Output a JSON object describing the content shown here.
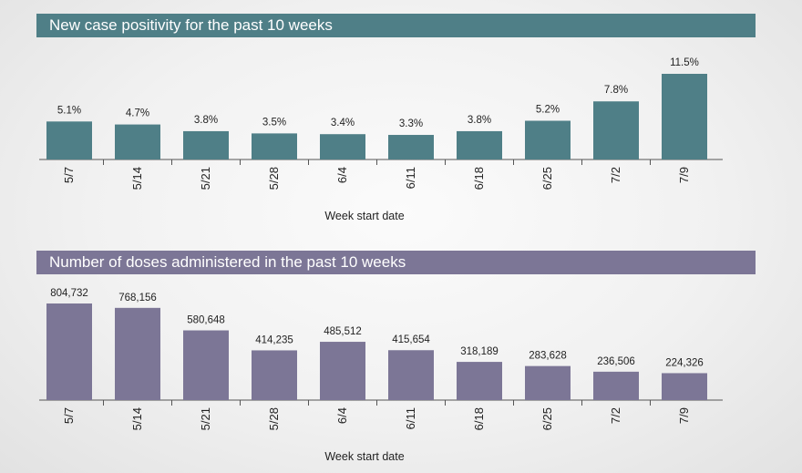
{
  "charts": [
    {
      "header_color": "#4f7f87",
      "bar_color": "#4f7f87",
      "chart_title": "New case positivity for the past 10 weeks",
      "xlabel": "Week start date"
    },
    {
      "header_color": "#7c7696",
      "bar_color": "#7c7696",
      "chart_title": "Number of doses administered in the past 10 weeks",
      "xlabel": "Week start date"
    }
  ],
  "chart_data": [
    {
      "type": "bar",
      "title": "New case positivity for the past 10 weeks",
      "xlabel": "Week start date",
      "ylabel": "",
      "categories": [
        "5/7",
        "5/14",
        "5/21",
        "5/28",
        "6/4",
        "6/11",
        "6/18",
        "6/25",
        "7/2",
        "7/9"
      ],
      "values": [
        5.1,
        4.7,
        3.8,
        3.5,
        3.4,
        3.3,
        3.8,
        5.2,
        7.8,
        11.5
      ],
      "value_labels": [
        "5.1%",
        "4.7%",
        "3.8%",
        "3.5%",
        "3.4%",
        "3.3%",
        "3.8%",
        "5.2%",
        "7.8%",
        "11.5%"
      ],
      "unit": "%",
      "ylim": [
        0,
        11.5
      ],
      "grid": false,
      "bar_color": "#4f7f87"
    },
    {
      "type": "bar",
      "title": "Number of doses administered in the past 10 weeks",
      "xlabel": "Week start date",
      "ylabel": "",
      "categories": [
        "5/7",
        "5/14",
        "5/21",
        "5/28",
        "6/4",
        "6/11",
        "6/18",
        "6/25",
        "7/2",
        "7/9"
      ],
      "values": [
        804732,
        768156,
        580648,
        414235,
        485512,
        415654,
        318189,
        283628,
        236506,
        224326
      ],
      "value_labels": [
        "804,732",
        "768,156",
        "580,648",
        "414,235",
        "485,512",
        "415,654",
        "318,189",
        "283,628",
        "236,506",
        "224,326"
      ],
      "ylim": [
        0,
        804732
      ],
      "grid": false,
      "bar_color": "#7c7696"
    }
  ]
}
